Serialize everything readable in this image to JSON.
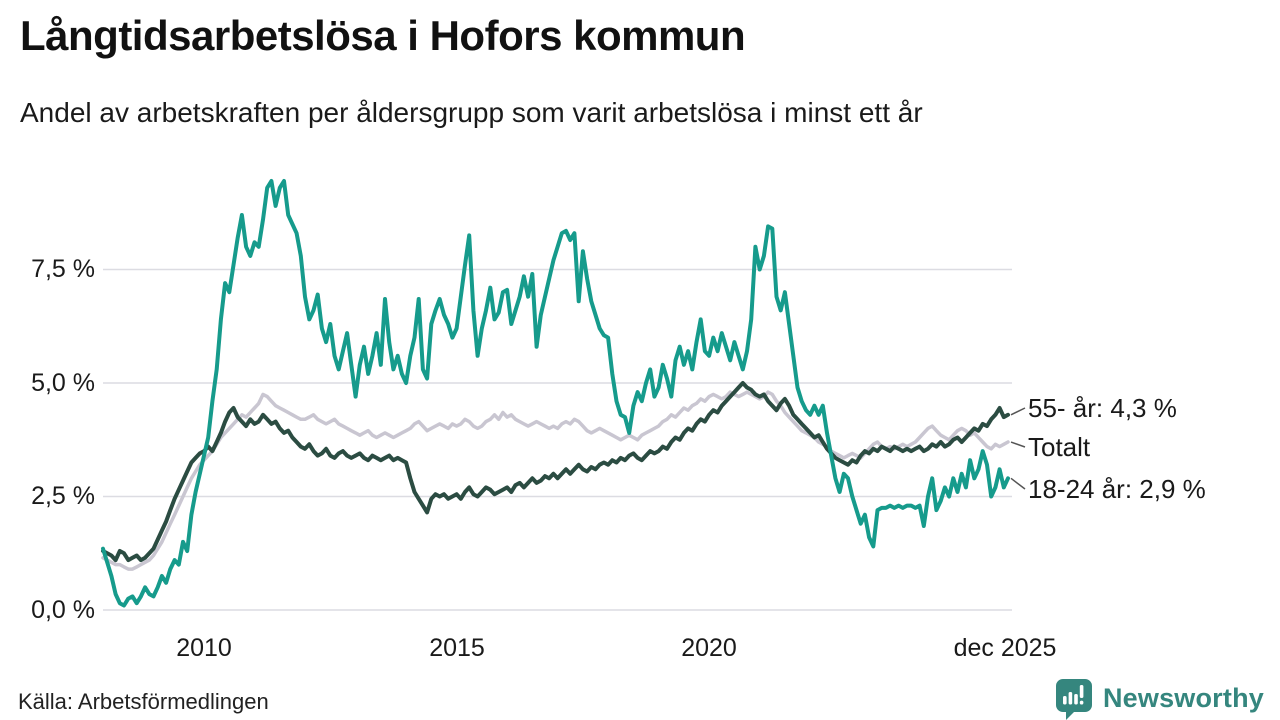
{
  "header": {
    "title": "Långtidsarbetslösa i Hofors kommun",
    "subtitle": "Andel av arbetskraften per åldersgrupp som varit arbetslösa i minst ett år"
  },
  "footer": {
    "source": "Källa: Arbetsförmedlingen",
    "brand_name": "Newsworthy",
    "brand_color": "#35867e",
    "brand_icon": "newsworthy-speech-bubble-bar-chart-icon"
  },
  "chart_data": {
    "type": "line",
    "title": "Långtidsarbetslösa i Hofors kommun",
    "subtitle": "Andel av arbetskraften per åldersgrupp som varit arbetslösa i minst ett år",
    "x_unit": "month",
    "x_start": "2008-01",
    "x_end": "2025-12",
    "x_ticks": [
      "2010",
      "2015",
      "2020",
      "dec 2025"
    ],
    "y_ticks": [
      "7,5 %",
      "5,0 %",
      "2,5 %",
      "0,0 %"
    ],
    "y_tick_values": [
      7.5,
      5.0,
      2.5,
      0.0
    ],
    "ylim": [
      0,
      9.9
    ],
    "grid": "horizontal",
    "gridline_color": "#dcdce2",
    "legend_position": "right-end-labels",
    "series": [
      {
        "name": "Totalt",
        "label": "Totalt",
        "color": "#c9c6d1",
        "stroke_width": 3.5,
        "end_value": 3.7,
        "values": [
          1.15,
          1.1,
          1.05,
          1.0,
          1.0,
          0.95,
          0.9,
          0.9,
          0.95,
          1.0,
          1.05,
          1.1,
          1.2,
          1.35,
          1.5,
          1.7,
          1.9,
          2.1,
          2.3,
          2.5,
          2.7,
          2.9,
          3.05,
          3.2,
          3.3,
          3.4,
          3.5,
          3.65,
          3.8,
          3.9,
          4.0,
          4.1,
          4.2,
          4.3,
          4.25,
          4.35,
          4.45,
          4.55,
          4.75,
          4.7,
          4.6,
          4.5,
          4.45,
          4.4,
          4.35,
          4.3,
          4.25,
          4.2,
          4.2,
          4.25,
          4.3,
          4.2,
          4.15,
          4.1,
          4.15,
          4.2,
          4.1,
          4.05,
          4.0,
          3.95,
          3.9,
          3.85,
          3.9,
          3.95,
          3.85,
          3.8,
          3.85,
          3.9,
          3.85,
          3.8,
          3.85,
          3.9,
          3.95,
          4.0,
          4.1,
          4.15,
          4.05,
          3.95,
          4.0,
          4.05,
          4.1,
          4.05,
          4.0,
          4.1,
          4.05,
          4.1,
          4.2,
          4.15,
          4.05,
          4.0,
          4.05,
          4.15,
          4.2,
          4.3,
          4.2,
          4.35,
          4.25,
          4.3,
          4.2,
          4.15,
          4.1,
          4.05,
          4.1,
          4.15,
          4.1,
          4.05,
          4.0,
          4.05,
          4.0,
          4.1,
          4.15,
          4.1,
          4.2,
          4.15,
          4.05,
          3.95,
          3.9,
          3.95,
          4.0,
          3.95,
          3.9,
          3.85,
          3.8,
          3.75,
          3.8,
          3.85,
          3.8,
          3.75,
          3.85,
          3.9,
          3.95,
          4.0,
          4.05,
          4.15,
          4.2,
          4.3,
          4.25,
          4.35,
          4.45,
          4.4,
          4.5,
          4.55,
          4.65,
          4.6,
          4.7,
          4.75,
          4.7,
          4.65,
          4.7,
          4.8,
          4.75,
          4.7,
          4.75,
          4.8,
          4.75,
          4.7,
          4.65,
          4.7,
          4.8,
          4.75,
          4.6,
          4.5,
          4.35,
          4.25,
          4.15,
          4.05,
          3.95,
          3.9,
          3.85,
          3.8,
          3.7,
          3.65,
          3.6,
          3.5,
          3.45,
          3.4,
          3.35,
          3.4,
          3.45,
          3.4,
          3.35,
          3.45,
          3.55,
          3.65,
          3.7,
          3.6,
          3.55,
          3.6,
          3.55,
          3.6,
          3.65,
          3.6,
          3.65,
          3.7,
          3.8,
          3.9,
          4.0,
          4.05,
          3.95,
          3.85,
          3.8,
          3.75,
          3.85,
          3.95,
          4.0,
          3.95,
          3.85,
          3.9,
          3.8,
          3.7,
          3.6,
          3.55,
          3.65,
          3.6,
          3.65,
          3.7
        ]
      },
      {
        "name": "55- år",
        "label": "55- år: 4,3 %",
        "color": "#2b4c42",
        "stroke_width": 4,
        "end_value": 4.3,
        "values": [
          1.3,
          1.25,
          1.2,
          1.1,
          1.3,
          1.25,
          1.1,
          1.15,
          1.2,
          1.1,
          1.15,
          1.25,
          1.35,
          1.55,
          1.75,
          1.95,
          2.2,
          2.45,
          2.65,
          2.85,
          3.05,
          3.25,
          3.35,
          3.45,
          3.5,
          3.6,
          3.5,
          3.7,
          3.9,
          4.15,
          4.35,
          4.45,
          4.25,
          4.15,
          4.05,
          4.2,
          4.1,
          4.15,
          4.3,
          4.2,
          4.1,
          4.15,
          4.0,
          3.9,
          3.95,
          3.8,
          3.7,
          3.6,
          3.55,
          3.65,
          3.5,
          3.4,
          3.45,
          3.55,
          3.4,
          3.35,
          3.45,
          3.5,
          3.4,
          3.35,
          3.4,
          3.45,
          3.35,
          3.3,
          3.4,
          3.35,
          3.3,
          3.35,
          3.4,
          3.3,
          3.35,
          3.3,
          3.25,
          2.9,
          2.6,
          2.45,
          2.3,
          2.15,
          2.45,
          2.55,
          2.5,
          2.55,
          2.45,
          2.5,
          2.55,
          2.45,
          2.6,
          2.7,
          2.55,
          2.5,
          2.6,
          2.7,
          2.65,
          2.55,
          2.6,
          2.65,
          2.7,
          2.6,
          2.75,
          2.8,
          2.7,
          2.8,
          2.9,
          2.8,
          2.85,
          2.95,
          2.9,
          3.0,
          2.9,
          3.0,
          3.1,
          3.0,
          3.1,
          3.2,
          3.1,
          3.05,
          3.15,
          3.1,
          3.2,
          3.25,
          3.2,
          3.3,
          3.25,
          3.35,
          3.3,
          3.4,
          3.45,
          3.35,
          3.3,
          3.4,
          3.5,
          3.45,
          3.5,
          3.6,
          3.55,
          3.7,
          3.8,
          3.75,
          3.9,
          4.0,
          3.95,
          4.1,
          4.2,
          4.15,
          4.3,
          4.4,
          4.35,
          4.5,
          4.6,
          4.7,
          4.8,
          4.9,
          5.0,
          4.9,
          4.85,
          4.75,
          4.7,
          4.75,
          4.6,
          4.5,
          4.4,
          4.55,
          4.65,
          4.5,
          4.3,
          4.2,
          4.1,
          4.0,
          3.9,
          3.8,
          3.85,
          3.7,
          3.55,
          3.45,
          3.35,
          3.3,
          3.25,
          3.2,
          3.3,
          3.25,
          3.4,
          3.5,
          3.45,
          3.55,
          3.5,
          3.6,
          3.55,
          3.5,
          3.6,
          3.55,
          3.5,
          3.55,
          3.5,
          3.55,
          3.6,
          3.5,
          3.55,
          3.65,
          3.6,
          3.7,
          3.6,
          3.65,
          3.75,
          3.8,
          3.7,
          3.8,
          3.9,
          4.0,
          3.95,
          4.1,
          4.05,
          4.2,
          4.3,
          4.45,
          4.25,
          4.3
        ]
      },
      {
        "name": "18-24 år",
        "label": "18-24 år: 2,9 %",
        "color": "#169b8c",
        "stroke_width": 4,
        "end_value": 2.9,
        "values": [
          1.35,
          1.05,
          0.75,
          0.35,
          0.15,
          0.1,
          0.25,
          0.3,
          0.15,
          0.3,
          0.5,
          0.35,
          0.3,
          0.5,
          0.75,
          0.6,
          0.9,
          1.1,
          1.0,
          1.5,
          1.3,
          2.1,
          2.6,
          3.0,
          3.4,
          3.8,
          4.6,
          5.3,
          6.4,
          7.2,
          7.0,
          7.6,
          8.2,
          8.7,
          8.0,
          7.8,
          8.1,
          8.0,
          8.6,
          9.3,
          9.45,
          8.9,
          9.3,
          9.45,
          8.7,
          8.5,
          8.3,
          7.8,
          6.9,
          6.4,
          6.6,
          6.95,
          6.2,
          5.9,
          6.3,
          5.6,
          5.3,
          5.7,
          6.1,
          5.4,
          4.7,
          5.4,
          5.8,
          5.2,
          5.6,
          6.1,
          5.4,
          6.85,
          5.9,
          5.3,
          5.6,
          5.2,
          5.0,
          5.6,
          6.0,
          6.85,
          5.3,
          5.1,
          6.3,
          6.6,
          6.85,
          6.5,
          6.3,
          6.0,
          6.2,
          6.9,
          7.6,
          8.25,
          6.6,
          5.6,
          6.2,
          6.6,
          7.1,
          6.4,
          6.55,
          7.0,
          7.05,
          6.3,
          6.6,
          6.9,
          7.35,
          6.9,
          7.4,
          5.8,
          6.5,
          6.9,
          7.3,
          7.7,
          8.0,
          8.3,
          8.35,
          8.15,
          8.3,
          6.8,
          7.9,
          7.3,
          6.8,
          6.5,
          6.2,
          6.05,
          6.0,
          5.2,
          4.6,
          4.3,
          4.25,
          3.9,
          4.5,
          4.8,
          4.6,
          5.0,
          5.3,
          4.7,
          4.9,
          5.4,
          5.1,
          4.7,
          5.5,
          5.8,
          5.4,
          5.7,
          5.3,
          5.9,
          6.4,
          5.7,
          5.6,
          6.0,
          5.7,
          6.1,
          5.8,
          5.5,
          5.9,
          5.6,
          5.3,
          5.7,
          6.4,
          8.0,
          7.5,
          7.8,
          8.45,
          8.4,
          6.9,
          6.6,
          7.0,
          6.3,
          5.6,
          4.9,
          4.6,
          4.4,
          4.3,
          4.5,
          4.3,
          4.5,
          3.9,
          3.4,
          2.9,
          2.6,
          3.0,
          2.9,
          2.5,
          2.2,
          1.9,
          2.1,
          1.6,
          1.4,
          2.2,
          2.25,
          2.25,
          2.3,
          2.25,
          2.3,
          2.25,
          2.3,
          2.3,
          2.25,
          2.3,
          1.85,
          2.5,
          2.9,
          2.2,
          2.4,
          2.7,
          2.5,
          2.9,
          2.6,
          3.0,
          2.7,
          3.3,
          2.9,
          3.1,
          3.5,
          3.2,
          2.5,
          2.7,
          3.1,
          2.7,
          2.9
        ]
      }
    ]
  }
}
